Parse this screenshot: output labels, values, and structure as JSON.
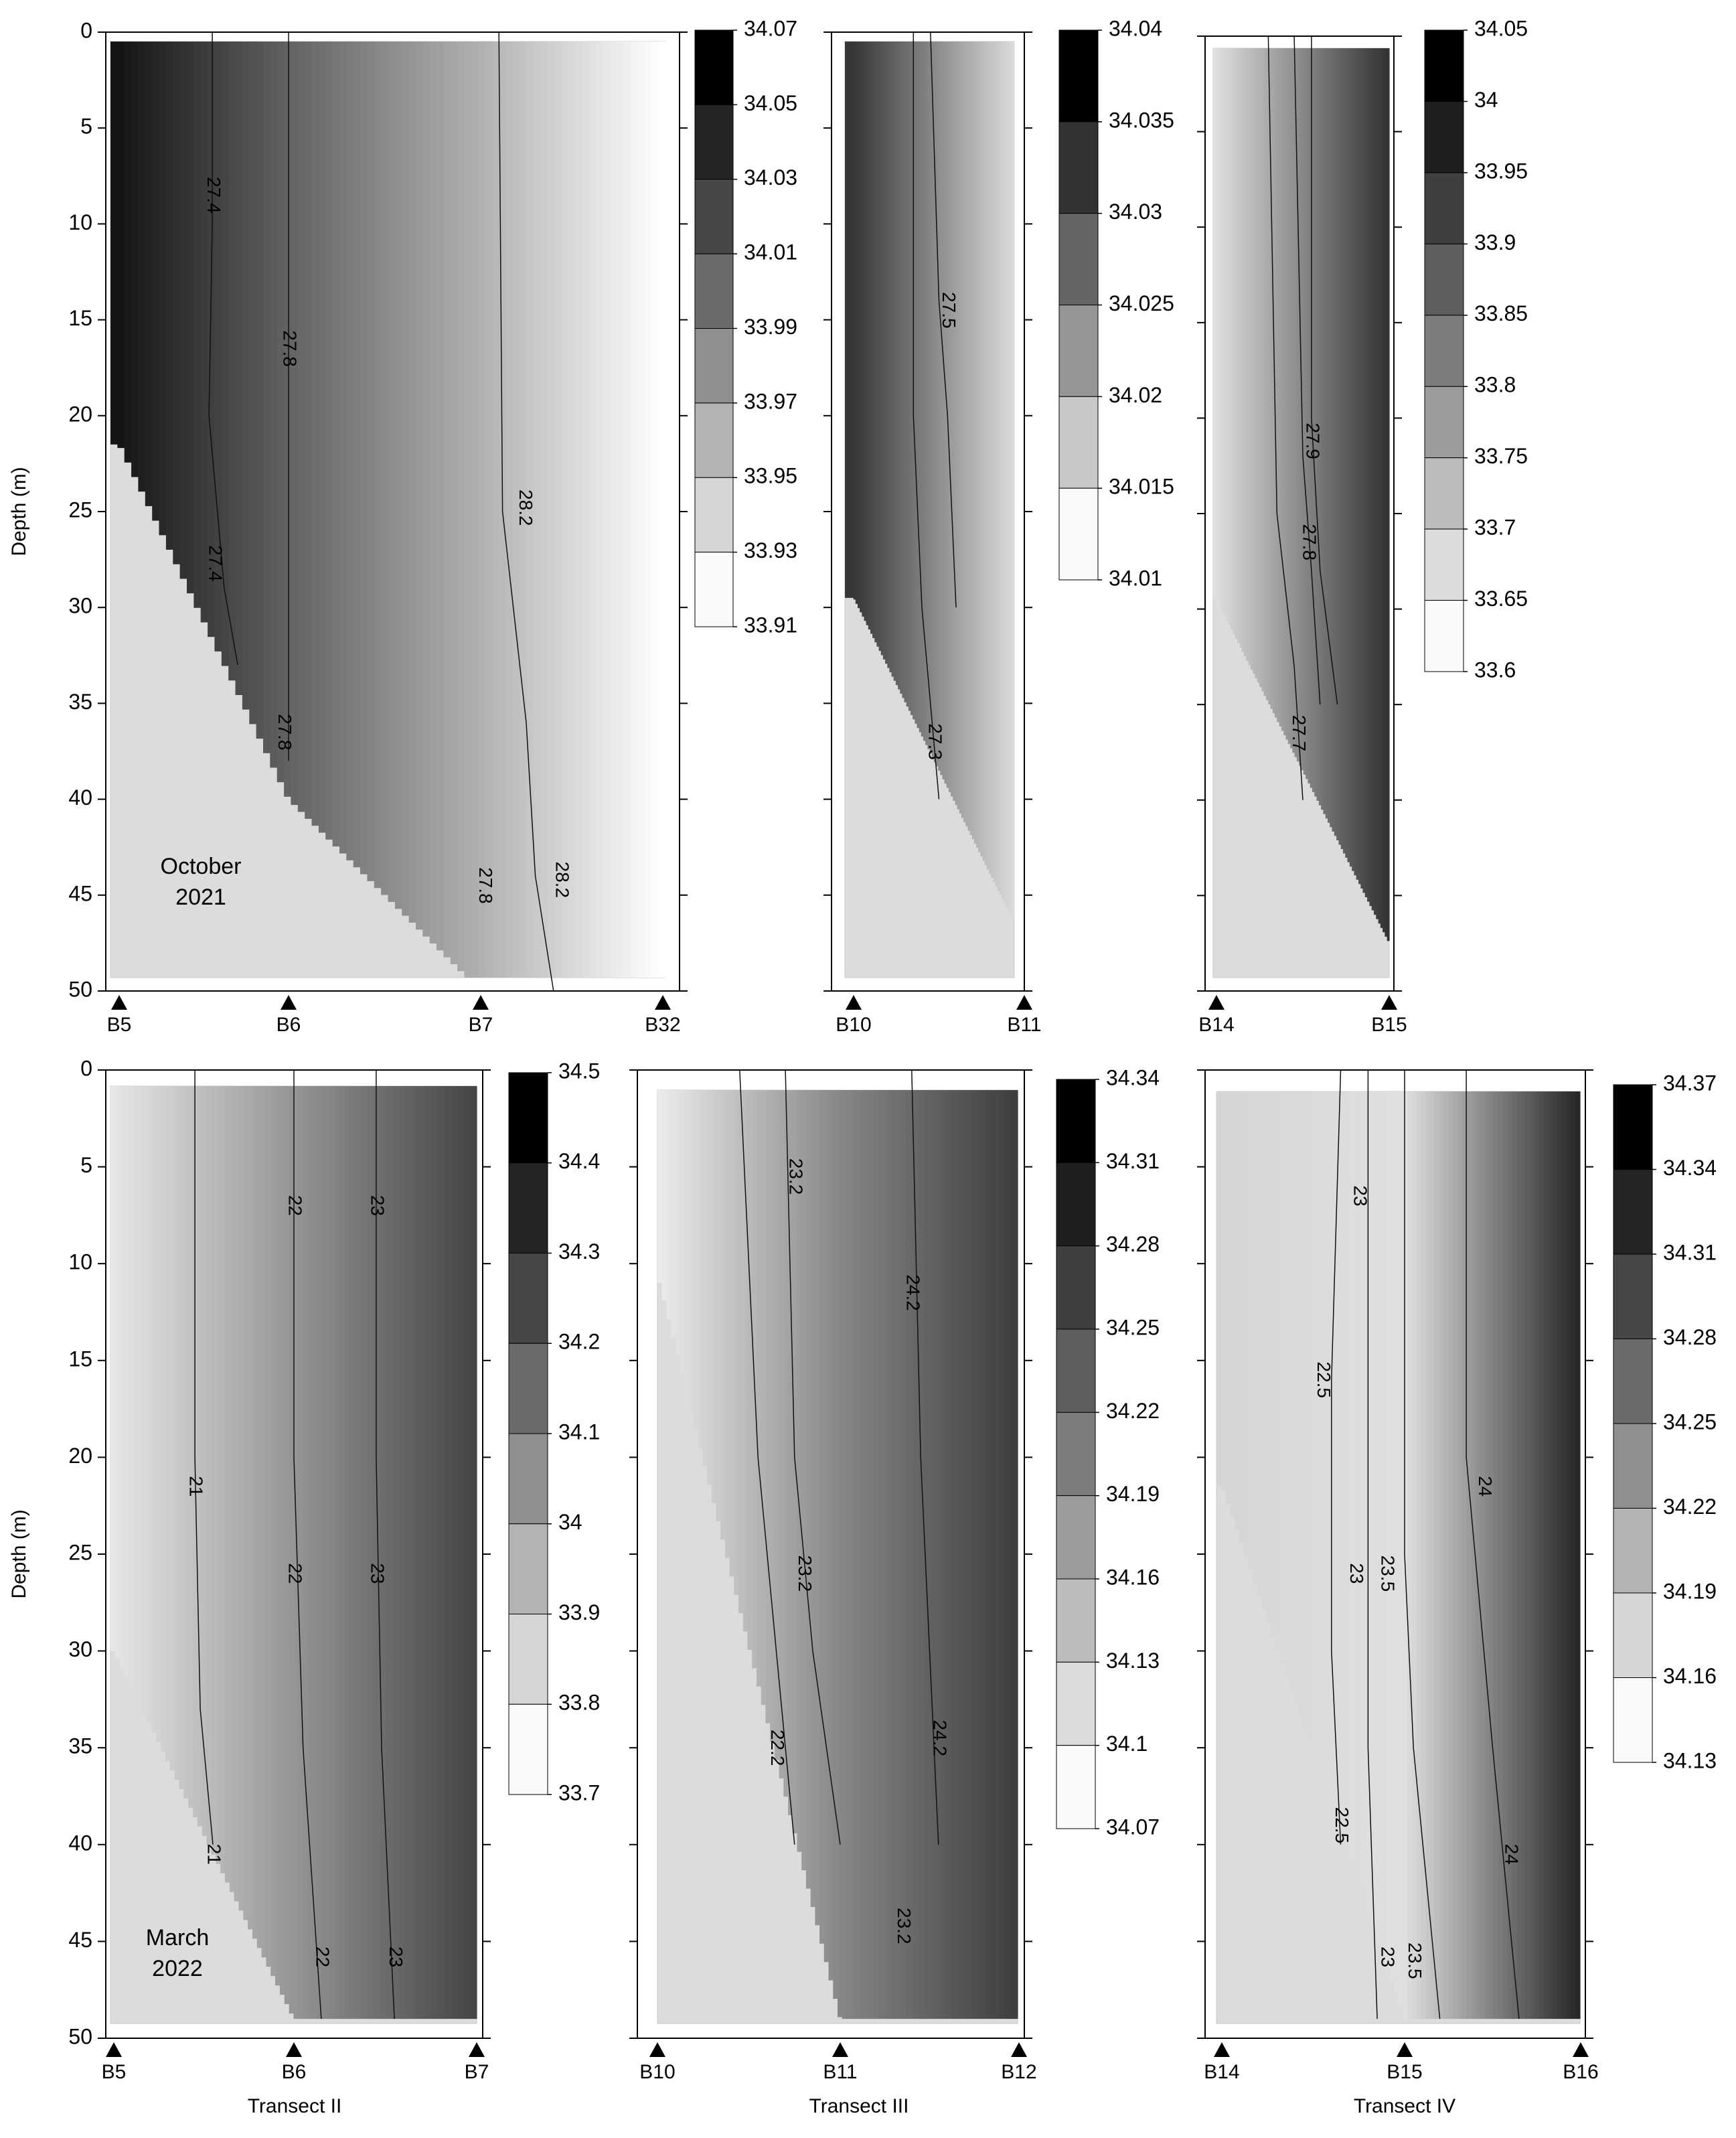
{
  "figure": {
    "ylabel": "Depth (m)",
    "ticks": [
      "0",
      "5",
      "10",
      "15",
      "20",
      "25",
      "30",
      "35",
      "40",
      "45",
      "50"
    ]
  },
  "chart_data": [
    {
      "type": "heatmap",
      "title": "",
      "xlabel": "",
      "ylabel": "Depth (m)",
      "ylim": [
        0,
        50
      ],
      "y_inverted": true,
      "annotation": "October 2021",
      "stations": [
        "B5",
        "B6",
        "B7",
        "B32"
      ],
      "max_depth_by_station": [
        21.5,
        40,
        50,
        50
      ],
      "colorbar": [
        "34.07",
        "34.05",
        "34.03",
        "34.01",
        "33.99",
        "33.97",
        "33.95",
        "33.93",
        "33.91"
      ],
      "value_by_station": [
        34.06,
        34.01,
        33.96,
        33.91
      ],
      "isolines": [
        {
          "label": "27.4",
          "x": [
            0.55,
            0.55,
            0.53,
            0.62,
            0.7
          ],
          "depth": [
            0,
            10,
            20,
            29,
            33
          ]
        },
        {
          "label": "27.8",
          "x": [
            1.0,
            1.0,
            1.0,
            1.0
          ],
          "depth": [
            0,
            18,
            28,
            38
          ]
        },
        {
          "label": "28.2",
          "x": [
            2.1,
            2.12,
            2.25,
            2.3,
            2.4
          ],
          "depth": [
            0,
            25,
            36,
            44,
            50
          ]
        }
      ],
      "isoline_labels": [
        {
          "text": "27.4",
          "x": 0.55,
          "depth": 8.5
        },
        {
          "text": "27.8",
          "x": 1.0,
          "depth": 16.5
        },
        {
          "text": "28.2",
          "x": 2.24,
          "depth": 24.8
        },
        {
          "text": "27.4",
          "x": 0.56,
          "depth": 27.7
        },
        {
          "text": "27.8",
          "x": 0.97,
          "depth": 36.5
        },
        {
          "text": "27.8",
          "x": 2.02,
          "depth": 44.5
        },
        {
          "text": "28.2",
          "x": 2.44,
          "depth": 44.2
        }
      ]
    },
    {
      "type": "heatmap",
      "title": "",
      "xlabel": "",
      "ylabel": "",
      "ylim": [
        0,
        50
      ],
      "y_inverted": true,
      "stations": [
        "B10",
        "B11"
      ],
      "max_depth_by_station": [
        29.5,
        47.5
      ],
      "colorbar": [
        "34.04",
        "34.035",
        "34.03",
        "34.025",
        "34.02",
        "34.015",
        "34.01"
      ],
      "value_by_station": [
        34.034,
        34.013
      ],
      "isolines": [
        {
          "label": "27.5",
          "x": [
            0.45,
            0.5,
            0.55,
            0.6
          ],
          "depth": [
            0,
            14,
            20,
            30
          ]
        },
        {
          "label": "27.3",
          "x": [
            0.35,
            0.35,
            0.4,
            0.5
          ],
          "depth": [
            0,
            20,
            30,
            40
          ]
        }
      ],
      "isoline_labels": [
        {
          "text": "27.5",
          "x": 0.55,
          "depth": 14.5
        },
        {
          "text": "27.3",
          "x": 0.47,
          "depth": 37
        }
      ]
    },
    {
      "type": "heatmap",
      "title": "",
      "xlabel": "",
      "ylabel": "",
      "ylim": [
        0,
        50
      ],
      "y_inverted": true,
      "stations": [
        "B14",
        "B15"
      ],
      "max_depth_by_station": [
        29.5,
        47.5
      ],
      "colorbar": [
        "34.05",
        "34",
        "33.95",
        "33.9",
        "33.85",
        "33.8",
        "33.75",
        "33.7",
        "33.65",
        "33.6"
      ],
      "value_by_station": [
        33.66,
        33.97
      ],
      "isolines": [
        {
          "label": "27.9",
          "x": [
            0.55,
            0.55,
            0.6,
            0.7
          ],
          "depth": [
            0,
            20,
            28,
            35
          ]
        },
        {
          "label": "27.8",
          "x": [
            0.45,
            0.5,
            0.55,
            0.6
          ],
          "depth": [
            0,
            22,
            28,
            35
          ]
        },
        {
          "label": "27.7",
          "x": [
            0.3,
            0.35,
            0.45,
            0.5
          ],
          "depth": [
            0,
            25,
            33,
            40
          ]
        }
      ],
      "isoline_labels": [
        {
          "text": "27.9",
          "x": 0.55,
          "depth": 21.2
        },
        {
          "text": "27.8",
          "x": 0.53,
          "depth": 26.5
        },
        {
          "text": "27.7",
          "x": 0.47,
          "depth": 36.5
        }
      ]
    },
    {
      "type": "heatmap",
      "title": "",
      "xlabel": "Transect II",
      "ylabel": "Depth (m)",
      "ylim": [
        0,
        50
      ],
      "y_inverted": true,
      "annotation": "March 2022",
      "stations": [
        "B5",
        "B6",
        "B7"
      ],
      "max_depth_by_station": [
        30,
        49,
        49
      ],
      "colorbar": [
        "34.5",
        "34.4",
        "34.3",
        "34.2",
        "34.1",
        "34",
        "33.9",
        "33.8",
        "33.7"
      ],
      "value_by_station": [
        33.78,
        34.04,
        34.3
      ],
      "isolines": [
        {
          "label": "21",
          "x": [
            0.45,
            0.45,
            0.48,
            0.55
          ],
          "depth": [
            0,
            20,
            33,
            40
          ]
        },
        {
          "label": "22",
          "x": [
            1.0,
            1.0,
            1.05,
            1.15
          ],
          "depth": [
            0,
            20,
            35,
            49
          ]
        },
        {
          "label": "23",
          "x": [
            1.45,
            1.45,
            1.48,
            1.55
          ],
          "depth": [
            0,
            20,
            35,
            49
          ]
        }
      ],
      "isoline_labels": [
        {
          "text": "22",
          "x": 1.0,
          "depth": 7
        },
        {
          "text": "23",
          "x": 1.45,
          "depth": 7
        },
        {
          "text": "21",
          "x": 0.45,
          "depth": 21.5
        },
        {
          "text": "22",
          "x": 1.0,
          "depth": 26
        },
        {
          "text": "23",
          "x": 1.45,
          "depth": 26
        },
        {
          "text": "21",
          "x": 0.55,
          "depth": 40.5
        },
        {
          "text": "22",
          "x": 1.15,
          "depth": 45.8
        },
        {
          "text": "23",
          "x": 1.55,
          "depth": 45.8
        }
      ]
    },
    {
      "type": "heatmap",
      "title": "",
      "xlabel": "Transect III",
      "ylabel": "",
      "ylim": [
        0,
        50
      ],
      "y_inverted": true,
      "stations": [
        "B10",
        "B11",
        "B12"
      ],
      "max_depth_by_station": [
        10.5,
        49,
        49
      ],
      "colorbar": [
        "34.34",
        "34.31",
        "34.28",
        "34.25",
        "34.22",
        "34.19",
        "34.16",
        "34.13",
        "34.1",
        "34.07"
      ],
      "value_by_station": [
        34.09,
        34.2,
        34.28
      ],
      "isolines": [
        {
          "label": "23.2",
          "x": [
            0.7,
            0.75,
            0.85,
            1.0
          ],
          "depth": [
            0,
            20,
            30,
            40
          ]
        },
        {
          "label": "24.2",
          "x": [
            1.4,
            1.45,
            1.5,
            1.55
          ],
          "depth": [
            0,
            20,
            30,
            40
          ]
        },
        {
          "label": "22.2",
          "x": [
            0.45,
            0.55,
            0.65,
            0.75
          ],
          "depth": [
            0,
            20,
            30,
            40
          ]
        }
      ],
      "isoline_labels": [
        {
          "text": "23.2",
          "x": 0.75,
          "depth": 5.5
        },
        {
          "text": "24.2",
          "x": 1.4,
          "depth": 11.5
        },
        {
          "text": "23.2",
          "x": 0.8,
          "depth": 26
        },
        {
          "text": "24.2",
          "x": 1.55,
          "depth": 34.5
        },
        {
          "text": "22.2",
          "x": 0.65,
          "depth": 35
        },
        {
          "text": "23.2",
          "x": 1.35,
          "depth": 44.2
        }
      ]
    },
    {
      "type": "heatmap",
      "title": "",
      "xlabel": "Transect IV",
      "ylabel": "",
      "ylim": [
        0,
        50
      ],
      "y_inverted": true,
      "stations": [
        "B14",
        "B15",
        "B16"
      ],
      "max_depth_by_station": [
        21.5,
        49,
        49
      ],
      "colorbar": [
        "34.37",
        "34.34",
        "34.31",
        "34.28",
        "34.25",
        "34.22",
        "34.19",
        "34.16",
        "34.13"
      ],
      "value_by_station": [
        34.17,
        34.16,
        34.34
      ],
      "isolines": [
        {
          "label": "23",
          "x": [
            0.8,
            0.8,
            0.8,
            0.85
          ],
          "depth": [
            0,
            25,
            35,
            49
          ]
        },
        {
          "label": "22.5",
          "x": [
            0.65,
            0.6,
            0.6,
            0.65
          ],
          "depth": [
            0,
            16,
            30,
            40
          ]
        },
        {
          "label": "23.5",
          "x": [
            1.0,
            1.0,
            1.05,
            1.2
          ],
          "depth": [
            0,
            25,
            35,
            49
          ]
        },
        {
          "label": "24",
          "x": [
            1.35,
            1.35,
            1.5,
            1.65
          ],
          "depth": [
            0,
            20,
            35,
            49
          ]
        }
      ],
      "isoline_labels": [
        {
          "text": "23",
          "x": 0.75,
          "depth": 6.5
        },
        {
          "text": "22.5",
          "x": 0.55,
          "depth": 16
        },
        {
          "text": "24",
          "x": 1.45,
          "depth": 21.5
        },
        {
          "text": "23",
          "x": 0.73,
          "depth": 26
        },
        {
          "text": "23.5",
          "x": 0.9,
          "depth": 26
        },
        {
          "text": "22.5",
          "x": 0.65,
          "depth": 39
        },
        {
          "text": "24",
          "x": 1.6,
          "depth": 40.5
        },
        {
          "text": "23",
          "x": 0.9,
          "depth": 45.8
        },
        {
          "text": "23.5",
          "x": 1.05,
          "depth": 46
        }
      ]
    }
  ]
}
